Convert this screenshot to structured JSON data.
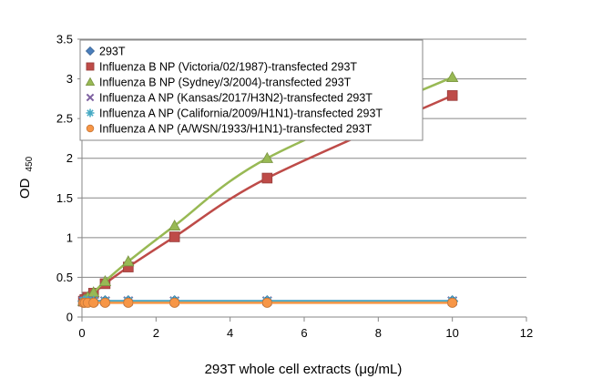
{
  "chart_data": {
    "type": "scatter",
    "title": "",
    "xlabel": "293T whole cell extracts (μg/mL)",
    "ylabel": "OD",
    "ylabel_subscript": "450",
    "xlim": [
      0,
      12
    ],
    "ylim": [
      0,
      3.5
    ],
    "xticks": [
      0,
      2,
      4,
      6,
      8,
      10,
      12
    ],
    "yticks": [
      0,
      0.5,
      1,
      1.5,
      2,
      2.5,
      3,
      3.5
    ],
    "grid": "horizontal",
    "legend_position": "top-left",
    "series": [
      {
        "name": "293T",
        "color": "#4a7ebb",
        "marker": "diamond",
        "x": [
          0.039,
          0.078,
          0.156,
          0.3125,
          0.625,
          1.25,
          2.5,
          5,
          10
        ],
        "y": [
          0.2,
          0.2,
          0.2,
          0.2,
          0.2,
          0.2,
          0.2,
          0.2,
          0.2
        ]
      },
      {
        "name": "Influenza B NP (Victoria/02/1987)-transfected 293T",
        "color": "#be4b48",
        "marker": "square",
        "x": [
          0.039,
          0.078,
          0.156,
          0.3125,
          0.625,
          1.25,
          2.5,
          5,
          10
        ],
        "y": [
          0.2,
          0.22,
          0.25,
          0.3,
          0.42,
          0.63,
          1.01,
          1.75,
          2.79
        ]
      },
      {
        "name": "Influenza B NP (Sydney/3/2004)-transfected 293T",
        "color": "#98b954",
        "marker": "triangle",
        "x": [
          0.039,
          0.078,
          0.156,
          0.3125,
          0.625,
          1.25,
          2.5,
          5,
          10
        ],
        "y": [
          0.2,
          0.22,
          0.25,
          0.31,
          0.45,
          0.7,
          1.15,
          2.0,
          3.02
        ]
      },
      {
        "name": "Influenza A NP (Kansas/2017/H3N2)-transfected 293T",
        "color": "#7d60a0",
        "marker": "x",
        "x": [
          0.039,
          0.078,
          0.156,
          0.3125,
          0.625,
          1.25,
          2.5,
          5,
          10
        ],
        "y": [
          0.2,
          0.2,
          0.2,
          0.2,
          0.2,
          0.2,
          0.2,
          0.2,
          0.2
        ]
      },
      {
        "name": "Influenza A NP (California/2009/H1N1)-transfected 293T",
        "color": "#46aac4",
        "marker": "star",
        "x": [
          0.039,
          0.078,
          0.156,
          0.3125,
          0.625,
          1.25,
          2.5,
          5,
          10
        ],
        "y": [
          0.2,
          0.2,
          0.2,
          0.2,
          0.2,
          0.2,
          0.2,
          0.2,
          0.2
        ]
      },
      {
        "name": "Influenza A NP (A/WSN/1933/H1N1)-transfected  293T",
        "color": "#f79646",
        "marker": "circle",
        "x": [
          0.039,
          0.078,
          0.156,
          0.3125,
          0.625,
          1.25,
          2.5,
          5,
          10
        ],
        "y": [
          0.18,
          0.18,
          0.18,
          0.18,
          0.18,
          0.18,
          0.18,
          0.18,
          0.18
        ]
      }
    ]
  }
}
